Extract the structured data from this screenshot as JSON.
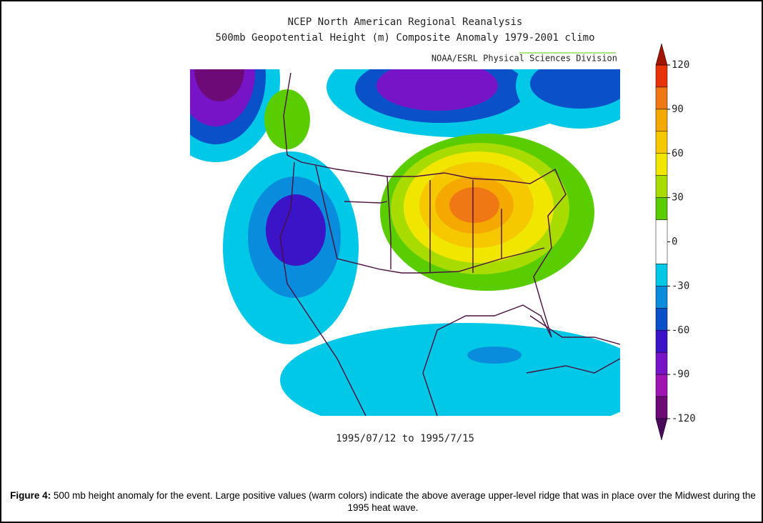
{
  "header": {
    "title": "NCEP North American Regional Reanalysis",
    "subtitle": "500mb Geopotential Height (m) Composite Anomaly 1979-2001 climo",
    "credit": "NOAA/ESRL Physical Sciences Division"
  },
  "date_range": "1995/07/12 to 1995/7/15",
  "colorbar": {
    "ticks": [
      120,
      90,
      60,
      30,
      0,
      -30,
      -60,
      -90,
      -120
    ],
    "lim": [
      -120,
      120
    ],
    "above_color": "#a01400",
    "below_color": "#4a0a5a",
    "bands": [
      {
        "from": 105,
        "to": 120,
        "color": "#e8320a"
      },
      {
        "from": 90,
        "to": 105,
        "color": "#f07814"
      },
      {
        "from": 75,
        "to": 90,
        "color": "#f5a800"
      },
      {
        "from": 60,
        "to": 75,
        "color": "#f5c800"
      },
      {
        "from": 45,
        "to": 60,
        "color": "#f0e600"
      },
      {
        "from": 30,
        "to": 45,
        "color": "#a8dc00"
      },
      {
        "from": 15,
        "to": 30,
        "color": "#5acd00"
      },
      {
        "from": -15,
        "to": 15,
        "color": "#ffffff"
      },
      {
        "from": -30,
        "to": -15,
        "color": "#00c8e6"
      },
      {
        "from": -45,
        "to": -30,
        "color": "#0a8cdc"
      },
      {
        "from": -60,
        "to": -45,
        "color": "#0a50c8"
      },
      {
        "from": -75,
        "to": -60,
        "color": "#3c14c8"
      },
      {
        "from": -90,
        "to": -75,
        "color": "#7814c8"
      },
      {
        "from": -105,
        "to": -90,
        "color": "#a014b4"
      },
      {
        "from": -120,
        "to": -105,
        "color": "#6e0a78"
      }
    ]
  },
  "caption": {
    "label": "Figure 4:",
    "text": "500 mb height anomaly for the event. Large positive values (warm colors) indicate the above average upper-level ridge that was in place over the Midwest during the 1995 heat wave."
  }
}
